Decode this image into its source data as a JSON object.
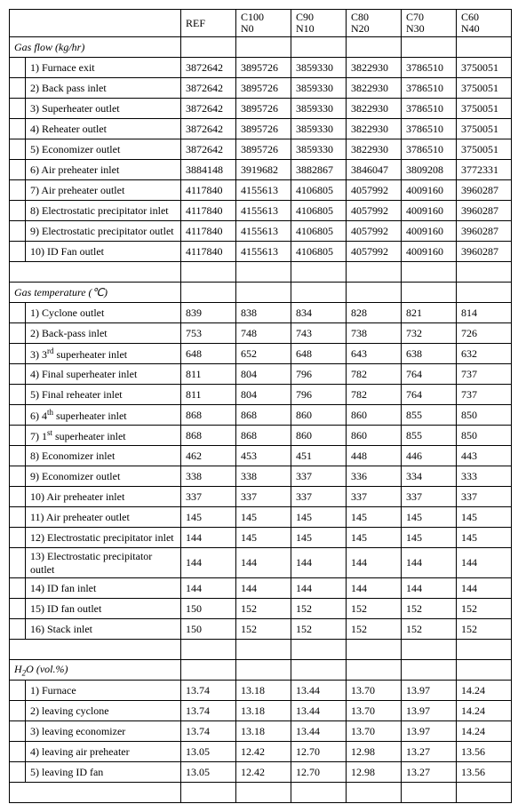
{
  "headers": [
    "REF",
    "C100 N0",
    "C90 N10",
    "C80 N20",
    "C70 N30",
    "C60 N40"
  ],
  "sections": [
    {
      "title": "Gas flow (kg/hr)",
      "rows": [
        {
          "label": "1) Furnace exit",
          "vals": [
            "3872642",
            "3895726",
            "3859330",
            "3822930",
            "3786510",
            "3750051"
          ]
        },
        {
          "label": "2) Back pass inlet",
          "vals": [
            "3872642",
            "3895726",
            "3859330",
            "3822930",
            "3786510",
            "3750051"
          ]
        },
        {
          "label": "3) Superheater outlet",
          "vals": [
            "3872642",
            "3895726",
            "3859330",
            "3822930",
            "3786510",
            "3750051"
          ]
        },
        {
          "label": "4) Reheater outlet",
          "vals": [
            "3872642",
            "3895726",
            "3859330",
            "3822930",
            "3786510",
            "3750051"
          ]
        },
        {
          "label": "5) Economizer outlet",
          "vals": [
            "3872642",
            "3895726",
            "3859330",
            "3822930",
            "3786510",
            "3750051"
          ]
        },
        {
          "label": "6) Air preheater inlet",
          "vals": [
            "3884148",
            "3919682",
            "3882867",
            "3846047",
            "3809208",
            "3772331"
          ]
        },
        {
          "label": "7) Air preheater outlet",
          "vals": [
            "4117840",
            "4155613",
            "4106805",
            "4057992",
            "4009160",
            "3960287"
          ]
        },
        {
          "label": "8) Electrostatic precipitator inlet",
          "tall": true,
          "vals": [
            "4117840",
            "4155613",
            "4106805",
            "4057992",
            "4009160",
            "3960287"
          ]
        },
        {
          "label": "9) Electrostatic precipitator outlet",
          "tall": true,
          "vals": [
            "4117840",
            "4155613",
            "4106805",
            "4057992",
            "4009160",
            "3960287"
          ]
        },
        {
          "label": "10) ID Fan outlet",
          "vals": [
            "4117840",
            "4155613",
            "4106805",
            "4057992",
            "4009160",
            "3960287"
          ]
        }
      ]
    },
    {
      "title": "Gas temperature (℃)",
      "rows": [
        {
          "label": "1) Cyclone outlet",
          "vals": [
            "839",
            "838",
            "834",
            "828",
            "821",
            "814"
          ]
        },
        {
          "label": "2) Back-pass inlet",
          "vals": [
            "753",
            "748",
            "743",
            "738",
            "732",
            "726"
          ]
        },
        {
          "label_html": "3) 3<span class='sup'>rd</span> superheater inlet",
          "vals": [
            "648",
            "652",
            "648",
            "643",
            "638",
            "632"
          ]
        },
        {
          "label": "4) Final superheater inlet",
          "vals": [
            "811",
            "804",
            "796",
            "782",
            "764",
            "737"
          ]
        },
        {
          "label": "5) Final reheater inlet",
          "vals": [
            "811",
            "804",
            "796",
            "782",
            "764",
            "737"
          ]
        },
        {
          "label_html": "6) 4<span class='sup'>th</span> superheater inlet",
          "vals": [
            "868",
            "868",
            "860",
            "860",
            "855",
            "850"
          ]
        },
        {
          "label_html": "7) 1<span class='sup'>st</span> superheater inlet",
          "vals": [
            "868",
            "868",
            "860",
            "860",
            "855",
            "850"
          ]
        },
        {
          "label": "8) Economizer inlet",
          "vals": [
            "462",
            "453",
            "451",
            "448",
            "446",
            "443"
          ]
        },
        {
          "label": "9) Economizer outlet",
          "vals": [
            "338",
            "338",
            "337",
            "336",
            "334",
            "333"
          ]
        },
        {
          "label": "10) Air preheater inlet",
          "vals": [
            "337",
            "337",
            "337",
            "337",
            "337",
            "337"
          ]
        },
        {
          "label": "11) Air preheater outlet",
          "vals": [
            "145",
            "145",
            "145",
            "145",
            "145",
            "145"
          ]
        },
        {
          "label": "12) Electrostatic precipitator inlet",
          "tall": true,
          "vals": [
            "144",
            "145",
            "145",
            "145",
            "145",
            "145"
          ]
        },
        {
          "label": "13) Electrostatic precipitator outlet",
          "tall": true,
          "vals": [
            "144",
            "144",
            "144",
            "144",
            "144",
            "144"
          ]
        },
        {
          "label": "14) ID fan inlet",
          "vals": [
            "144",
            "144",
            "144",
            "144",
            "144",
            "144"
          ]
        },
        {
          "label": "15) ID fan outlet",
          "vals": [
            "150",
            "152",
            "152",
            "152",
            "152",
            "152"
          ]
        },
        {
          "label": "16) Stack inlet",
          "vals": [
            "150",
            "152",
            "152",
            "152",
            "152",
            "152"
          ]
        }
      ]
    },
    {
      "title_html": "H<span class='sub'>2</span>O (vol.%)",
      "rows": [
        {
          "label": "1) Furnace",
          "vals": [
            "13.74",
            "13.18",
            "13.44",
            "13.70",
            "13.97",
            "14.24"
          ]
        },
        {
          "label": "2) leaving cyclone",
          "vals": [
            "13.74",
            "13.18",
            "13.44",
            "13.70",
            "13.97",
            "14.24"
          ]
        },
        {
          "label": "3) leaving economizer",
          "vals": [
            "13.74",
            "13.18",
            "13.44",
            "13.70",
            "13.97",
            "14.24"
          ]
        },
        {
          "label": "4) leaving air preheater",
          "vals": [
            "13.05",
            "12.42",
            "12.70",
            "12.98",
            "13.27",
            "13.56"
          ]
        },
        {
          "label": "5) leaving ID fan",
          "vals": [
            "13.05",
            "12.42",
            "12.70",
            "12.98",
            "13.27",
            "13.56"
          ]
        }
      ]
    }
  ]
}
